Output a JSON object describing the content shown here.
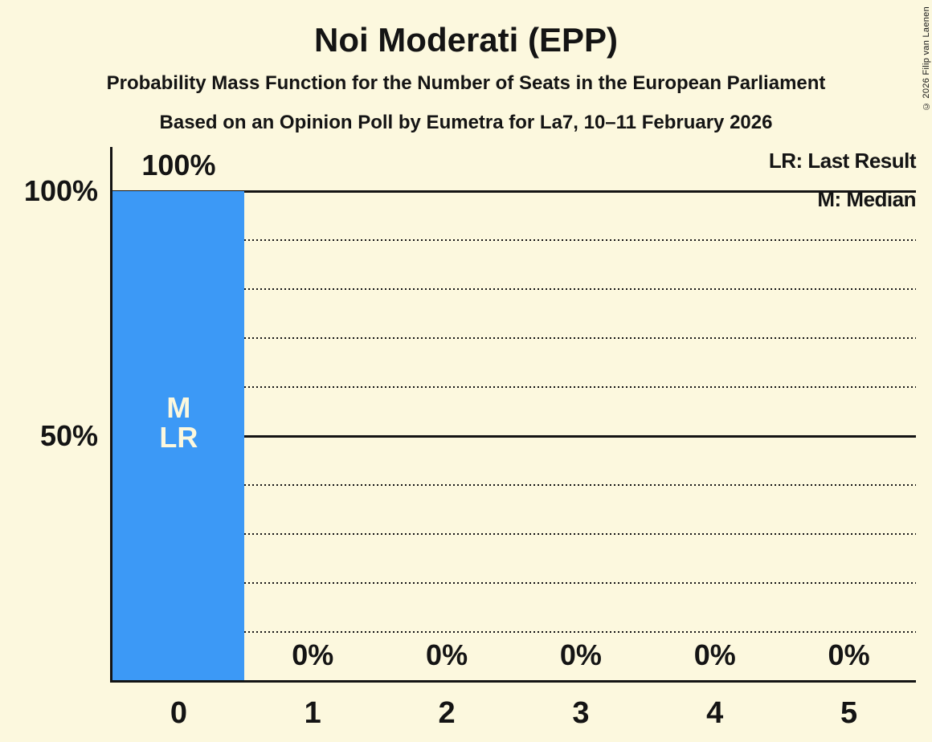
{
  "title": "Noi Moderati (EPP)",
  "subtitle": "Probability Mass Function for the Number of Seats in the European Parliament",
  "source_line": "Based on an Opinion Poll by Eumetra for La7, 10–11 February 2026",
  "copyright": "© 2026 Filip van Laenen",
  "legend": {
    "last_result": "LR: Last Result",
    "median": "M: Median"
  },
  "colors": {
    "background": "#FCF8DE",
    "bar": "#3C99F6",
    "text": "#141414",
    "bar_text": "#FCF8DE",
    "gridline": "#141414"
  },
  "chart_data": {
    "type": "bar",
    "title": "Noi Moderati (EPP)",
    "categories": [
      "0",
      "1",
      "2",
      "3",
      "4",
      "5"
    ],
    "values": [
      100,
      0,
      0,
      0,
      0,
      0
    ],
    "value_labels": [
      "100%",
      "0%",
      "0%",
      "0%",
      "0%",
      "0%"
    ],
    "ylim": [
      0,
      100
    ],
    "y_ticks": [
      {
        "value": 100,
        "label": "100%"
      },
      {
        "value": 50,
        "label": "50%"
      }
    ],
    "solid_gridlines": [
      50,
      100
    ],
    "dotted_gridlines": [
      10,
      20,
      30,
      40,
      60,
      70,
      80,
      90
    ],
    "grid": "horizontal, dotted minor / solid major",
    "legend_position": "top-right",
    "annotations": [
      {
        "category": "0",
        "lines": [
          "M",
          "LR"
        ],
        "meaning": "Median and Last Result at 0 seats"
      }
    ]
  }
}
